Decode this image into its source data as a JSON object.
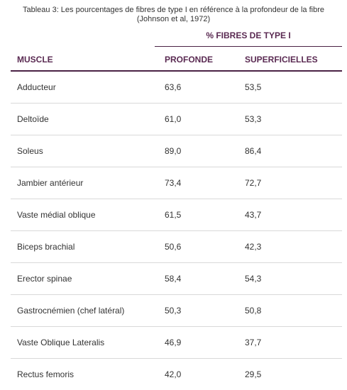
{
  "caption": {
    "line1": "Tableau 3: Les pourcentages de fibres de type I en référence à la profondeur de la fibre",
    "line2": "(Johnson et al, 1972)"
  },
  "table": {
    "group_header": "% FIBRES DE TYPE I",
    "columns": [
      "MUSCLE",
      "PROFONDE",
      "SUPERFICIELLES"
    ],
    "rows": [
      {
        "muscle": "Adducteur",
        "profonde": "63,6",
        "superficielles": "53,5"
      },
      {
        "muscle": "Deltoïde",
        "profonde": "61,0",
        "superficielles": "53,3"
      },
      {
        "muscle": "Soleus",
        "profonde": "89,0",
        "superficielles": "86,4"
      },
      {
        "muscle": "Jambier antérieur",
        "profonde": "73,4",
        "superficielles": "72,7"
      },
      {
        "muscle": "Vaste médial oblique",
        "profonde": "61,5",
        "superficielles": "43,7"
      },
      {
        "muscle": "Biceps brachial",
        "profonde": "50,6",
        "superficielles": "42,3"
      },
      {
        "muscle": "Erector spinae",
        "profonde": "58,4",
        "superficielles": "54,3"
      },
      {
        "muscle": "Gastrocnémien (chef latéral)",
        "profonde": "50,3",
        "superficielles": "50,8"
      },
      {
        "muscle": "Vaste Oblique Lateralis",
        "profonde": "46,9",
        "superficielles": "37,7"
      },
      {
        "muscle": "Rectus femoris",
        "profonde": "42,0",
        "superficielles": "29,5"
      }
    ]
  },
  "colors": {
    "header_text": "#5a2a52",
    "rule": "#4a2245",
    "row_divider": "#d9d9d9",
    "body_text": "#333333"
  }
}
